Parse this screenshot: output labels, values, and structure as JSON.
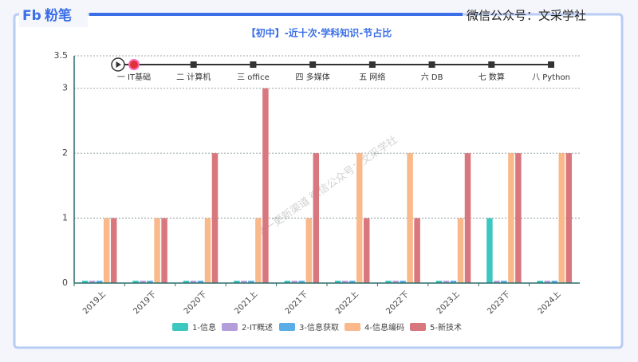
{
  "header": {
    "logo_mark": "Fb",
    "logo_text": "粉笔",
    "account": "微信公众号：文采学社"
  },
  "watermark": "唯一更新渠道 微信公众号：文采学社",
  "timeline": [
    "一 IT基础",
    "二 计算机",
    "三 office",
    "四 多媒体",
    "五 网络",
    "六 DB",
    "七 数算",
    "八 Python"
  ],
  "chart_data": {
    "type": "bar",
    "title": "【初中】-近十次·学科知识-节占比",
    "categories": [
      "2019上",
      "2019下",
      "2020下",
      "2021上",
      "2021下",
      "2022上",
      "2022下",
      "2023上",
      "2023下",
      "2024上"
    ],
    "series": [
      {
        "name": "1-信息",
        "color": "#3cc8c0",
        "values": [
          0,
          0,
          0,
          0,
          0,
          0,
          0,
          0,
          1,
          0
        ]
      },
      {
        "name": "2-IT概述",
        "color": "#b39ddb",
        "values": [
          0,
          0,
          0,
          0,
          0,
          0,
          0,
          0,
          0,
          0
        ]
      },
      {
        "name": "3-信息获取",
        "color": "#5aaee8",
        "values": [
          0,
          0,
          0,
          0,
          0,
          0,
          0,
          0,
          0,
          0
        ]
      },
      {
        "name": "4-信息编码",
        "color": "#f9b98a",
        "values": [
          1,
          1,
          1,
          1,
          1,
          2,
          2,
          1,
          2,
          2
        ]
      },
      {
        "name": "5-新技术",
        "color": "#d9777f",
        "values": [
          1,
          1,
          2,
          3,
          2,
          1,
          1,
          2,
          2,
          2
        ]
      }
    ],
    "ylim": [
      0,
      3.5
    ],
    "yticks": [
      0,
      1,
      2,
      3,
      3.5
    ],
    "grid": true
  }
}
